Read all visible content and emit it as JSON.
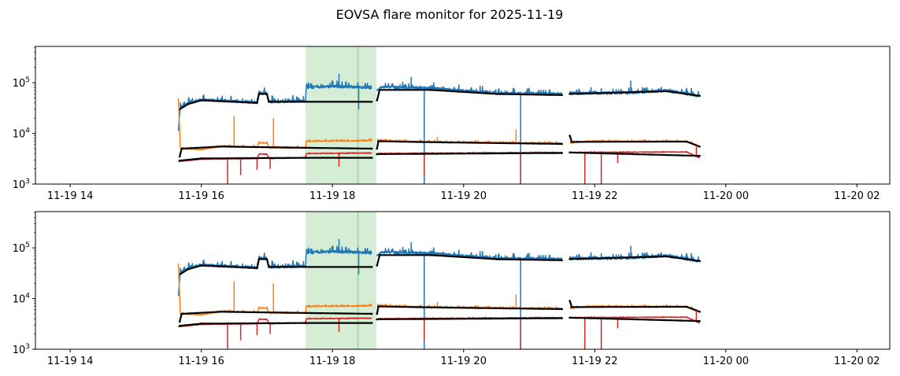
{
  "title": "EOVSA flare monitor for 2025-11-19",
  "chart_data": {
    "type": "line",
    "title": "EOVSA flare monitor for 2025-11-19",
    "x_units": "hours since 2025-11-19 00:00 UT",
    "xlim": [
      13.47,
      26.5
    ],
    "ylim": [
      1000,
      520000
    ],
    "yscale": "log",
    "xticks": [
      {
        "t": 14,
        "label": "11-19 14"
      },
      {
        "t": 16,
        "label": "11-19 16"
      },
      {
        "t": 18,
        "label": "11-19 18"
      },
      {
        "t": 20,
        "label": "11-19 20"
      },
      {
        "t": 22,
        "label": "11-19 22"
      },
      {
        "t": 24,
        "label": "11-20 00"
      },
      {
        "t": 26,
        "label": "11-20 02"
      }
    ],
    "yticks": [
      {
        "v": 1000,
        "base": "10",
        "exp": "3"
      },
      {
        "v": 10000,
        "base": "10",
        "exp": "4"
      },
      {
        "v": 100000,
        "base": "10",
        "exp": "5"
      }
    ],
    "flare_span": {
      "start": 17.59,
      "end": 18.67,
      "peak": 18.39,
      "color": "#2ca02c"
    },
    "series": [
      {
        "name": "blue-raw",
        "color": "#1f77b4",
        "noise": 0.12,
        "up": 0.25,
        "segments": [
          [
            [
              15.65,
              12000
            ],
            [
              15.68,
              33000
            ],
            [
              15.8,
              40000
            ],
            [
              16.0,
              46000
            ],
            [
              16.5,
              43000
            ],
            [
              16.85,
              41000
            ],
            [
              16.88,
              62000
            ],
            [
              17.0,
              62000
            ],
            [
              17.03,
              42000
            ],
            [
              17.59,
              44000
            ],
            [
              17.6,
              80000
            ],
            [
              18.0,
              85000
            ],
            [
              18.6,
              80000
            ]
          ],
          [
            [
              18.68,
              70000
            ],
            [
              18.75,
              82000
            ],
            [
              19.5,
              78000
            ],
            [
              20.5,
              62000
            ],
            [
              21.5,
              60000
            ]
          ],
          [
            [
              21.62,
              62000
            ],
            [
              22.5,
              63000
            ],
            [
              23.1,
              70000
            ],
            [
              23.6,
              55000
            ]
          ]
        ],
        "spikes": [
          [
            19.4,
            1000
          ],
          [
            20.87,
            1000
          ],
          [
            18.4,
            30000
          ],
          [
            18.1,
            150000
          ],
          [
            19.2,
            130000
          ],
          [
            22.55,
            110000
          ]
        ]
      },
      {
        "name": "blue-smooth",
        "color": "#000000",
        "noise": 0,
        "up": 0,
        "segments": [
          [
            [
              15.67,
              30000
            ],
            [
              15.8,
              38000
            ],
            [
              16.0,
              45000
            ],
            [
              16.85,
              40000
            ],
            [
              16.88,
              60000
            ],
            [
              17.0,
              60000
            ],
            [
              17.03,
              42000
            ],
            [
              17.59,
              42000
            ],
            [
              18.6,
              42000
            ]
          ],
          [
            [
              18.68,
              45000
            ],
            [
              18.72,
              72000
            ],
            [
              19.5,
              72000
            ],
            [
              20.5,
              60000
            ],
            [
              21.5,
              57000
            ]
          ],
          [
            [
              21.62,
              60000
            ],
            [
              23.1,
              68000
            ],
            [
              23.6,
              55000
            ]
          ]
        ],
        "spikes": []
      },
      {
        "name": "orange-raw",
        "color": "#ff7f0e",
        "noise": 0.04,
        "up": 0.08,
        "segments": [
          [
            [
              15.65,
              50000
            ],
            [
              15.68,
              5000
            ],
            [
              16.0,
              4800
            ],
            [
              16.3,
              5600
            ],
            [
              16.85,
              5300
            ],
            [
              16.88,
              6500
            ],
            [
              17.0,
              6500
            ],
            [
              17.03,
              5200
            ],
            [
              17.59,
              5200
            ],
            [
              17.6,
              7000
            ],
            [
              18.6,
              7200
            ]
          ],
          [
            [
              18.68,
              7200
            ],
            [
              19.5,
              6800
            ],
            [
              21.5,
              6300
            ]
          ],
          [
            [
              21.62,
              6500
            ],
            [
              22.0,
              7000
            ],
            [
              23.4,
              6900
            ],
            [
              23.6,
              5500
            ]
          ]
        ],
        "spikes": [
          [
            16.5,
            22000
          ],
          [
            17.1,
            20000
          ],
          [
            20.8,
            12000
          ],
          [
            19.6,
            8500
          ]
        ]
      },
      {
        "name": "orange-smooth",
        "color": "#000000",
        "noise": 0,
        "up": 0,
        "segments": [
          [
            [
              15.67,
              3500
            ],
            [
              15.7,
              5000
            ],
            [
              16.3,
              5500
            ],
            [
              17.59,
              5200
            ],
            [
              18.6,
              5000
            ]
          ],
          [
            [
              18.68,
              5000
            ],
            [
              18.7,
              7000
            ],
            [
              19.5,
              6700
            ],
            [
              21.5,
              6200
            ]
          ],
          [
            [
              21.62,
              9000
            ],
            [
              21.65,
              6800
            ],
            [
              23.4,
              6900
            ],
            [
              23.6,
              5500
            ]
          ]
        ],
        "spikes": []
      },
      {
        "name": "red-raw",
        "color": "#d62728",
        "noise": 0.03,
        "up": 0.03,
        "segments": [
          [
            [
              15.65,
              2800
            ],
            [
              16.0,
              3100
            ],
            [
              16.85,
              3200
            ],
            [
              16.88,
              3900
            ],
            [
              17.0,
              3900
            ],
            [
              17.03,
              3200
            ],
            [
              17.59,
              3300
            ],
            [
              17.6,
              4000
            ],
            [
              18.6,
              4100
            ]
          ],
          [
            [
              18.68,
              3800
            ],
            [
              18.7,
              4000
            ],
            [
              21.5,
              4200
            ]
          ],
          [
            [
              21.62,
              4200
            ],
            [
              23.4,
              4300
            ],
            [
              23.6,
              3300
            ]
          ]
        ],
        "spikes": [
          [
            16.4,
            1000
          ],
          [
            16.6,
            1500
          ],
          [
            16.85,
            1900
          ],
          [
            17.05,
            2000
          ],
          [
            18.1,
            2200
          ],
          [
            19.4,
            1500
          ],
          [
            20.87,
            1000
          ],
          [
            21.85,
            1000
          ],
          [
            22.1,
            1000
          ],
          [
            22.35,
            2600
          ],
          [
            23.55,
            5800
          ]
        ]
      },
      {
        "name": "red-smooth",
        "color": "#000000",
        "noise": 0,
        "up": 0,
        "segments": [
          [
            [
              15.67,
              2900
            ],
            [
              16.0,
              3200
            ],
            [
              17.59,
              3300
            ],
            [
              18.6,
              3300
            ]
          ],
          [
            [
              18.68,
              3900
            ],
            [
              21.5,
              4100
            ]
          ],
          [
            [
              21.62,
              4200
            ],
            [
              23.6,
              3600
            ]
          ]
        ],
        "spikes": []
      }
    ],
    "panels": [
      "top",
      "bottom"
    ]
  }
}
